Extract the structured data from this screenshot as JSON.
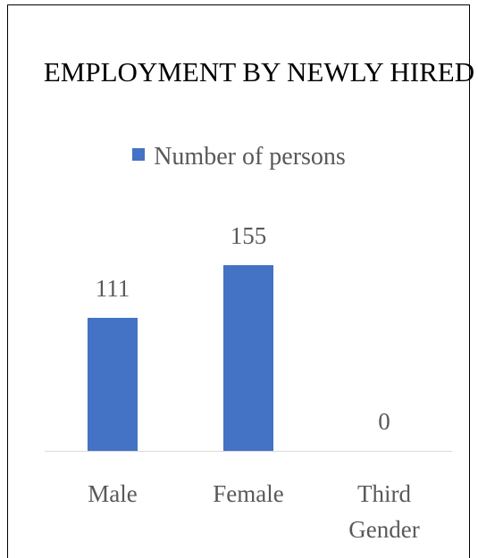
{
  "chart_data": {
    "type": "bar",
    "title": "EMPLOYMENT BY NEWLY HIRED",
    "categories": [
      "Male",
      "Female",
      "Third Gender"
    ],
    "series": [
      {
        "name": "Number of persons",
        "color": "#4472c4",
        "values": [
          111,
          155,
          0
        ]
      }
    ]
  }
}
